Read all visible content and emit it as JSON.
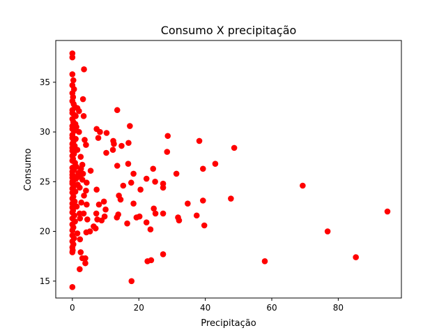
{
  "chart_data": {
    "type": "scatter",
    "title": "Consumo X precipitação",
    "xlabel": "Precipitação",
    "ylabel": "Consumo",
    "xlim": [
      -5,
      99
    ],
    "ylim": [
      13.3,
      39.2
    ],
    "xticks": [
      0,
      20,
      40,
      60,
      80
    ],
    "yticks": [
      15,
      20,
      25,
      30,
      35
    ],
    "grid": false,
    "marker_color": "#ff0000",
    "points": [
      [
        0,
        37.9
      ],
      [
        0,
        37.5
      ],
      [
        3.5,
        36.3
      ],
      [
        0,
        35.8
      ],
      [
        0.3,
        35.2
      ],
      [
        0,
        34.7
      ],
      [
        0.5,
        34.3
      ],
      [
        0,
        33.9
      ],
      [
        0.2,
        33.5
      ],
      [
        3.2,
        33.3
      ],
      [
        0,
        33.1
      ],
      [
        0.4,
        32.8
      ],
      [
        0.8,
        32.5
      ],
      [
        1.5,
        32.4
      ],
      [
        0,
        32.2
      ],
      [
        2.0,
        32.1
      ],
      [
        13.5,
        32.2
      ],
      [
        0,
        31.9
      ],
      [
        0.6,
        31.7
      ],
      [
        1.0,
        31.6
      ],
      [
        3.4,
        31.6
      ],
      [
        0,
        31.3
      ],
      [
        0.3,
        31.0
      ],
      [
        0.9,
        30.8
      ],
      [
        0,
        30.6
      ],
      [
        1.2,
        30.5
      ],
      [
        17.3,
        30.6
      ],
      [
        0,
        30.3
      ],
      [
        7.3,
        30.3
      ],
      [
        0.5,
        30.1
      ],
      [
        2.0,
        30.0
      ],
      [
        8.3,
        30.0
      ],
      [
        10.3,
        29.9
      ],
      [
        0,
        29.7
      ],
      [
        28.7,
        29.6
      ],
      [
        7.8,
        29.4
      ],
      [
        0,
        29.4
      ],
      [
        1.0,
        29.3
      ],
      [
        3.7,
        29.2
      ],
      [
        12.3,
        29.1
      ],
      [
        38.2,
        29.1
      ],
      [
        0.3,
        29.0
      ],
      [
        0,
        28.8
      ],
      [
        12.5,
        28.8
      ],
      [
        16.9,
        28.9
      ],
      [
        4.1,
        28.7
      ],
      [
        0.7,
        28.6
      ],
      [
        14.8,
        28.6
      ],
      [
        0,
        28.4
      ],
      [
        48.7,
        28.4
      ],
      [
        12.2,
        28.2
      ],
      [
        1.5,
        28.2
      ],
      [
        0,
        28.1
      ],
      [
        28.5,
        28.0
      ],
      [
        10.2,
        27.9
      ],
      [
        0.5,
        27.8
      ],
      [
        0,
        27.6
      ],
      [
        2.5,
        27.5
      ],
      [
        0.2,
        27.3
      ],
      [
        0,
        27.1
      ],
      [
        0.8,
        26.9
      ],
      [
        16.8,
        26.8
      ],
      [
        43.0,
        26.8
      ],
      [
        3.0,
        26.7
      ],
      [
        13.5,
        26.6
      ],
      [
        1.2,
        26.5
      ],
      [
        0,
        26.4
      ],
      [
        2.6,
        26.3
      ],
      [
        24.3,
        26.3
      ],
      [
        39.3,
        26.3
      ],
      [
        0.4,
        26.2
      ],
      [
        5.5,
        26.1
      ],
      [
        0,
        26.0
      ],
      [
        1.8,
        25.9
      ],
      [
        3.2,
        25.8
      ],
      [
        18.4,
        25.8
      ],
      [
        31.3,
        25.8
      ],
      [
        0,
        25.7
      ],
      [
        0.6,
        25.5
      ],
      [
        2.2,
        25.5
      ],
      [
        0,
        25.4
      ],
      [
        1.1,
        25.3
      ],
      [
        22.3,
        25.3
      ],
      [
        3.0,
        25.2
      ],
      [
        0.3,
        25.1
      ],
      [
        0,
        25.0
      ],
      [
        4.3,
        24.9
      ],
      [
        17.7,
        24.9
      ],
      [
        24.9,
        25.0
      ],
      [
        27.3,
        24.8
      ],
      [
        0,
        24.8
      ],
      [
        1.6,
        24.7
      ],
      [
        15.3,
        24.6
      ],
      [
        69.3,
        24.6
      ],
      [
        0.4,
        24.5
      ],
      [
        2.2,
        24.4
      ],
      [
        27.3,
        24.4
      ],
      [
        0,
        24.3
      ],
      [
        20.5,
        24.2
      ],
      [
        7.3,
        24.2
      ],
      [
        4.1,
        24.1
      ],
      [
        0.9,
        24.0
      ],
      [
        0,
        23.9
      ],
      [
        3.5,
        23.6
      ],
      [
        14.0,
        23.6
      ],
      [
        0.3,
        23.5
      ],
      [
        0,
        23.3
      ],
      [
        47.7,
        23.3
      ],
      [
        14.5,
        23.2
      ],
      [
        39.3,
        23.1
      ],
      [
        0.7,
        23.0
      ],
      [
        9.5,
        23.0
      ],
      [
        2.7,
        22.9
      ],
      [
        0,
        22.8
      ],
      [
        18.4,
        22.8
      ],
      [
        34.7,
        22.8
      ],
      [
        4.3,
        22.7
      ],
      [
        8.0,
        22.7
      ],
      [
        0.5,
        22.6
      ],
      [
        1.3,
        22.5
      ],
      [
        0,
        22.4
      ],
      [
        24.5,
        22.3
      ],
      [
        10.0,
        22.2
      ],
      [
        0.2,
        22.1
      ],
      [
        94.8,
        22.0
      ],
      [
        0,
        21.9
      ],
      [
        2.2,
        21.8
      ],
      [
        3.4,
        21.8
      ],
      [
        7.2,
        21.8
      ],
      [
        25.0,
        21.8
      ],
      [
        27.3,
        21.8
      ],
      [
        13.8,
        21.7
      ],
      [
        37.4,
        21.6
      ],
      [
        0.6,
        21.6
      ],
      [
        9.7,
        21.5
      ],
      [
        13.4,
        21.4
      ],
      [
        19.3,
        21.4
      ],
      [
        31.8,
        21.4
      ],
      [
        0,
        21.3
      ],
      [
        2.3,
        21.3
      ],
      [
        4.5,
        21.2
      ],
      [
        7.5,
        21.2
      ],
      [
        8.8,
        21.1
      ],
      [
        20.2,
        21.5
      ],
      [
        32.1,
        21.1
      ],
      [
        0.8,
        21.0
      ],
      [
        22.3,
        20.9
      ],
      [
        16.5,
        20.8
      ],
      [
        0,
        20.7
      ],
      [
        39.7,
        20.6
      ],
      [
        6.4,
        20.5
      ],
      [
        0.3,
        20.4
      ],
      [
        7.0,
        20.3
      ],
      [
        23.5,
        20.2
      ],
      [
        0,
        20.1
      ],
      [
        5.3,
        20.0
      ],
      [
        76.8,
        20.0
      ],
      [
        4.2,
        19.9
      ],
      [
        1.5,
        19.8
      ],
      [
        0,
        19.6
      ],
      [
        0.5,
        19.3
      ],
      [
        2.3,
        19.2
      ],
      [
        0,
        19.0
      ],
      [
        0.3,
        18.7
      ],
      [
        0,
        18.4
      ],
      [
        0.1,
        18.1
      ],
      [
        0,
        17.9
      ],
      [
        2.5,
        17.9
      ],
      [
        27.3,
        17.7
      ],
      [
        3.0,
        17.3
      ],
      [
        3.9,
        17.3
      ],
      [
        85.3,
        17.4
      ],
      [
        23.7,
        17.1
      ],
      [
        22.6,
        17.0
      ],
      [
        57.9,
        17.0
      ],
      [
        3.9,
        16.8
      ],
      [
        2.2,
        16.2
      ],
      [
        17.8,
        15.0
      ],
      [
        0,
        14.4
      ]
    ]
  }
}
